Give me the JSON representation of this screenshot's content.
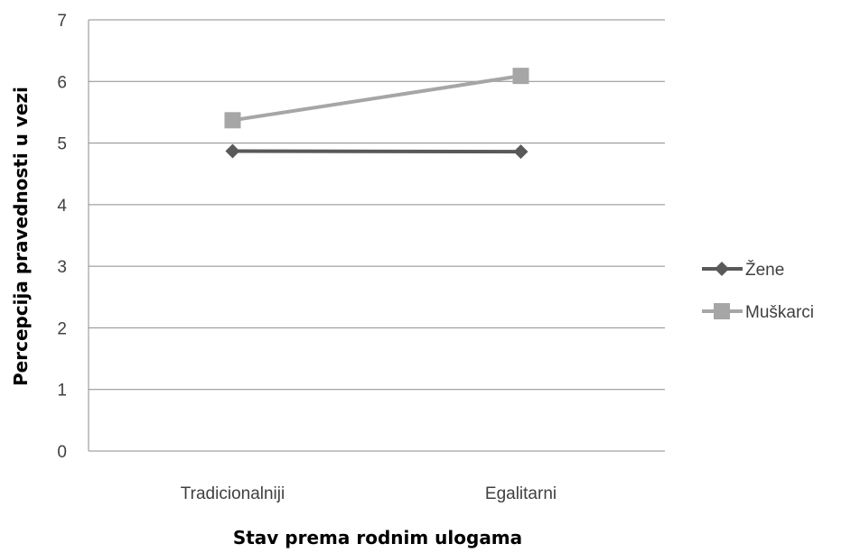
{
  "chart_data": {
    "type": "line",
    "title": "",
    "xlabel": "Stav prema rodnim ulogama",
    "ylabel": "Percepcija pravednosti u vezi",
    "categories": [
      "Tradicionalniji",
      "Egalitarni"
    ],
    "ylim": [
      0,
      7
    ],
    "yticks": [
      "0",
      "1",
      "2",
      "3",
      "4",
      "5",
      "6",
      "7"
    ],
    "grid": true,
    "legend_position": "right",
    "series": [
      {
        "name": "Žene",
        "values": [
          4.87,
          4.86
        ],
        "color": "#595959",
        "marker": "diamond"
      },
      {
        "name": "Muškarci",
        "values": [
          5.37,
          6.09
        ],
        "color": "#a6a6a6",
        "marker": "square"
      }
    ]
  }
}
